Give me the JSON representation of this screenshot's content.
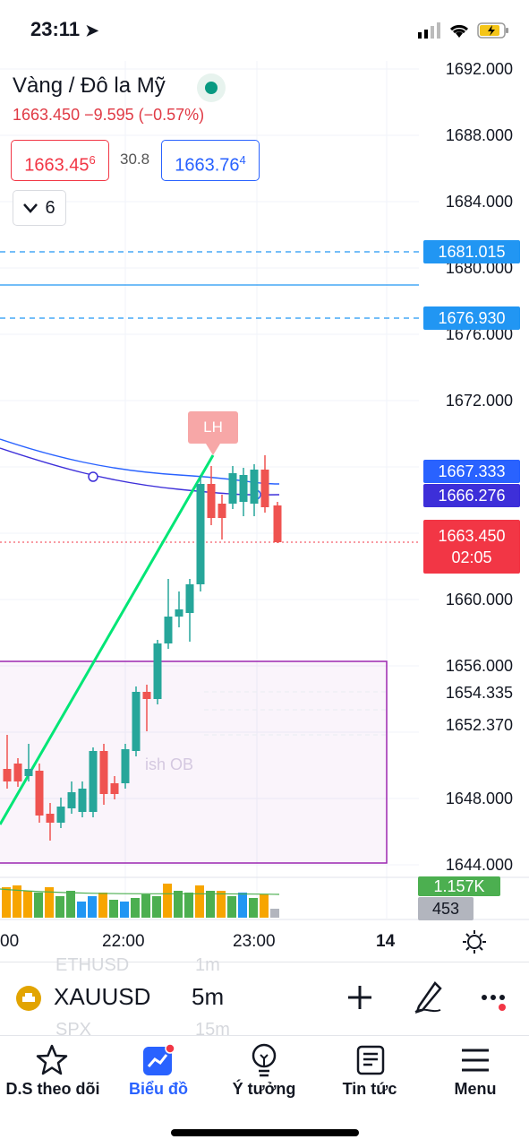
{
  "status": {
    "time": "23:11"
  },
  "legend": {
    "title": "Vàng / Đô la Mỹ",
    "change": "1663.450 −9.595 (−0.57%)",
    "sell": "1663.456",
    "sell_main": "1663.45",
    "sell_sup": "6",
    "spread": "30.8",
    "buy_main": "1663.76",
    "buy_sup": "4",
    "interval_label": "6"
  },
  "price_axis": {
    "ticks": [
      "1692.000",
      "1688.000",
      "1684.000",
      "1680.000",
      "1676.000",
      "1672.000",
      "1660.000",
      "1656.000",
      "1654.335",
      "1652.370",
      "1648.000",
      "1644.000"
    ],
    "badges": {
      "upper_dash": "1681.015",
      "lower_dash": "1676.930",
      "ma1": "1667.333",
      "ma2": "1666.276",
      "last": "1663.450",
      "countdown": "02:05",
      "vol1": "1.157K",
      "vol2": "453"
    }
  },
  "chart": {
    "pivot_label": "LH",
    "ob_label": "ish OB",
    "time_labels": [
      "00",
      "22:00",
      "23:00",
      "14"
    ],
    "colors": {
      "up": "#26a69a",
      "down": "#ef5350",
      "ma": "#2962ff",
      "trend": "#00e676",
      "ob": "#9c27b0",
      "last": "#f23645"
    }
  },
  "symbol_bar": {
    "symbol": "XAUUSD",
    "interval": "5m",
    "ghost_top_symbol": "ETHUSD",
    "ghost_top_int": "1m",
    "ghost_bottom_symbol": "SPX",
    "ghost_bottom_int": "15m"
  },
  "nav": {
    "watchlist": "D.S theo dõi",
    "chart": "Biểu đồ",
    "ideas": "Ý tưởng",
    "news": "Tin tức",
    "menu": "Menu"
  }
}
